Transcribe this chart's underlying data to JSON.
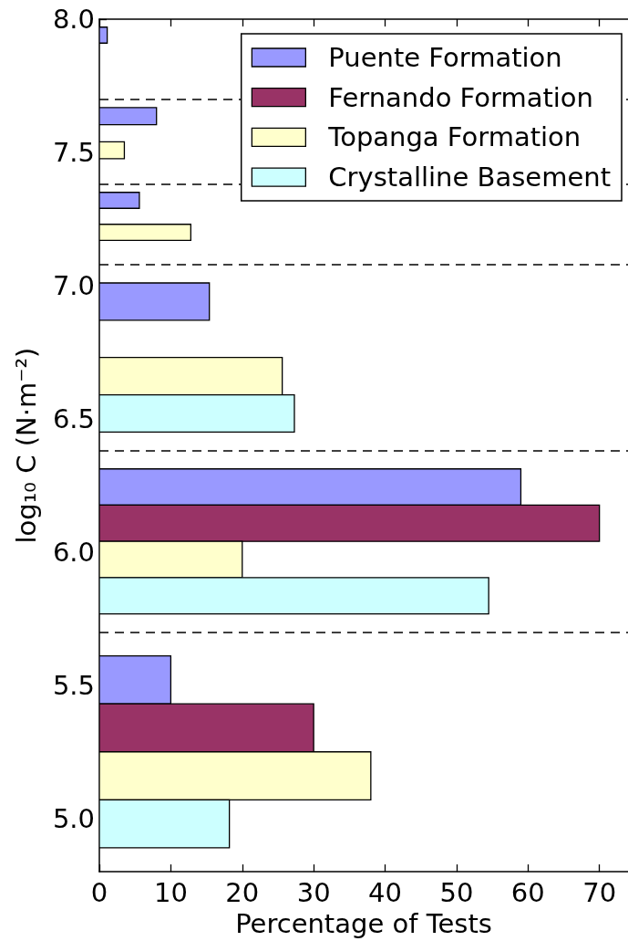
{
  "chart_data": {
    "type": "bar",
    "orientation": "horizontal",
    "xlabel": "Percentage of Tests",
    "ylabel": "log₁₀ C (N·m⁻²)",
    "xlim": [
      0,
      74
    ],
    "xticks": [
      0,
      10,
      20,
      30,
      40,
      50,
      60,
      70
    ],
    "ylim": [
      4.8,
      8.0
    ],
    "yticks": [
      {
        "value": 5,
        "label": "5.0"
      },
      5.5,
      {
        "value": 6,
        "label": "6.0"
      },
      6.5,
      {
        "value": 7,
        "label": "7.0"
      },
      7.5,
      {
        "value": 8,
        "label": "8.0"
      }
    ],
    "legend": "top right",
    "grid": false,
    "ref_lines": [
      {
        "axis": "y",
        "value": 5.7,
        "line_style": "dashed",
        "color": "#000000"
      },
      {
        "axis": "y",
        "value": 6.38,
        "line_style": "dashed",
        "color": "#000000"
      },
      {
        "axis": "y",
        "value": 7.08,
        "line_style": "dashed",
        "color": "#000000"
      },
      {
        "axis": "y",
        "value": 7.38,
        "line_style": "dashed",
        "color": "#000000"
      },
      {
        "axis": "y",
        "value": 7.7,
        "line_style": "dashed",
        "color": "#000000"
      }
    ],
    "series": [
      {
        "name": "Puente Formation",
        "color": "#9999ff",
        "x": [
          5.52,
          6.244,
          6.94,
          7.32,
          7.636,
          7.94
        ],
        "values": [
          10,
          59,
          15.4,
          5.6,
          8,
          1.1
        ]
      },
      {
        "name": "Fernando Formation",
        "color": "#993366",
        "x": [
          5.34,
          6.108
        ],
        "values": [
          30,
          70
        ]
      },
      {
        "name": "Topanga Formation",
        "color": "#ffffcc",
        "x": [
          5.16,
          5.972,
          6.66,
          7.2,
          7.508
        ],
        "values": [
          38,
          20,
          25.6,
          12.8,
          3.5
        ]
      },
      {
        "name": "Crystalline Basement",
        "color": "#ccffff",
        "x": [
          4.98,
          5.836,
          6.52
        ],
        "values": [
          18.2,
          54.5,
          27.3
        ]
      }
    ]
  }
}
